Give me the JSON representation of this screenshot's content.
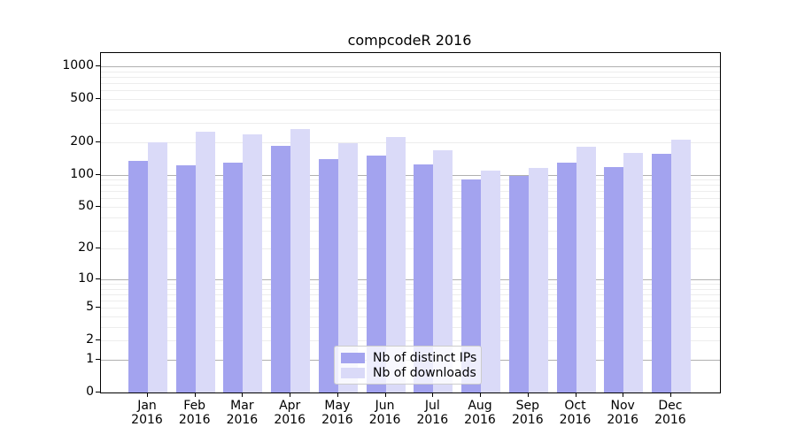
{
  "chart_data": {
    "type": "bar",
    "title": "compcodeR 2016",
    "categories": [
      "Jan",
      "Feb",
      "Mar",
      "Apr",
      "May",
      "Jun",
      "Jul",
      "Aug",
      "Sep",
      "Oct",
      "Nov",
      "Dec"
    ],
    "category_year": "2016",
    "series": [
      {
        "name": "Nb of distinct IPs",
        "color": "#a3a3ef",
        "values": [
          135,
          121,
          130,
          183,
          138,
          150,
          125,
          91,
          97,
          130,
          117,
          155
        ]
      },
      {
        "name": "Nb of downloads",
        "color": "#dadaf8",
        "values": [
          200,
          249,
          238,
          263,
          196,
          223,
          167,
          108,
          116,
          180,
          158,
          210
        ]
      }
    ],
    "yscale": "log1p",
    "yticks": [
      0,
      1,
      2,
      5,
      10,
      20,
      50,
      100,
      200,
      500,
      1000
    ],
    "ylim": [
      0,
      1324
    ],
    "grid": {
      "major_lines": [
        1,
        10,
        100,
        1000
      ],
      "minor_lines_per_decade": "2-9"
    },
    "legend_position": "lower center",
    "colors": {
      "major_grid": "#b0b0b0",
      "minor_grid": "#ededed",
      "axis": "#000000",
      "legend_border": "#cccccc"
    }
  }
}
